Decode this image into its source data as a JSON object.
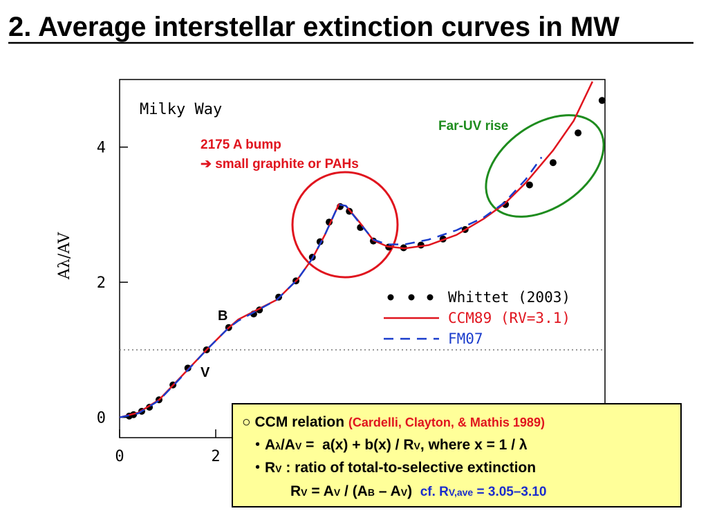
{
  "title": "2. Average interstellar extinction curves in MW",
  "chart_data": {
    "type": "line",
    "plot_label": "Milky Way",
    "y_label": "Aλ/AV",
    "annotations": [
      "2175 A bump",
      "➔ small graphite or PAHs",
      "Far-UV rise",
      "B",
      "V"
    ],
    "xlim": [
      0,
      10.1
    ],
    "ylim": [
      -0.3,
      5.0
    ],
    "xticks": [
      0,
      2
    ],
    "yticks": [
      0,
      2,
      4
    ],
    "reference_line": 1,
    "series": [
      {
        "name": "Whittet (2003)",
        "style": "points",
        "color": "#000000",
        "x": [
          0.2,
          0.29,
          0.46,
          0.62,
          0.82,
          1.11,
          1.42,
          1.81,
          2.27,
          2.79,
          2.91,
          3.31,
          3.67,
          4.01,
          4.17,
          4.36,
          4.59,
          4.78,
          5.01,
          5.28,
          5.6,
          5.91,
          6.27,
          6.73,
          7.19,
          8.03,
          8.53,
          9.02,
          9.54,
          10.04
        ],
        "values": [
          0.02,
          0.04,
          0.09,
          0.15,
          0.26,
          0.48,
          0.73,
          1.0,
          1.33,
          1.53,
          1.59,
          1.78,
          2.02,
          2.37,
          2.6,
          2.89,
          3.12,
          3.05,
          2.81,
          2.61,
          2.52,
          2.51,
          2.55,
          2.64,
          2.78,
          3.15,
          3.44,
          3.77,
          4.21,
          4.69
        ]
      },
      {
        "name": "CCM89 (RV=3.1)",
        "style": "solid",
        "color": "#e0141e",
        "x": [
          0,
          0.39,
          0.82,
          1.25,
          1.81,
          2.26,
          2.47,
          3.27,
          3.7,
          4.01,
          4.27,
          4.56,
          4.71,
          4.99,
          5.28,
          5.57,
          5.93,
          6.43,
          7.01,
          7.58,
          8.01,
          8.45,
          9.02,
          9.45,
          9.84
        ],
        "values": [
          0,
          0.07,
          0.26,
          0.58,
          1.0,
          1.32,
          1.45,
          1.74,
          2.04,
          2.35,
          2.7,
          3.15,
          3.13,
          2.89,
          2.62,
          2.53,
          2.5,
          2.55,
          2.7,
          2.94,
          3.16,
          3.47,
          3.95,
          4.39,
          4.97
        ]
      },
      {
        "name": "FM07",
        "style": "dashed",
        "color": "#1a3ccc",
        "x": [
          0,
          0.39,
          0.82,
          1.25,
          1.81,
          2.26,
          2.47,
          3.27,
          3.7,
          4.01,
          4.27,
          4.56,
          4.71,
          4.99,
          5.28,
          5.57,
          5.93,
          6.43,
          7.01,
          7.58,
          8.01,
          8.45,
          8.78
        ],
        "values": [
          0,
          0.06,
          0.25,
          0.57,
          1.0,
          1.32,
          1.43,
          1.74,
          2.04,
          2.35,
          2.7,
          3.15,
          3.13,
          2.88,
          2.63,
          2.56,
          2.56,
          2.63,
          2.77,
          2.96,
          3.18,
          3.52,
          3.85
        ]
      }
    ]
  },
  "box": {
    "lines": [
      [
        "○ CCM relation ",
        "(Cardelli, Clayton, & Mathis 1989)"
      ],
      [
        "・A",
        "λ",
        "/A",
        "V",
        " =  a(x) + b(x) / R",
        "V",
        ", where x = 1 / λ"
      ],
      [
        "・R",
        "V",
        " : ratio of total-to-selective extinction"
      ],
      [
        "R",
        "V",
        " = A",
        "V",
        " / (A",
        "B",
        " – A",
        "V",
        ")  ",
        "cf. R",
        "V,ave",
        " = 3.05–3.10"
      ]
    ]
  }
}
